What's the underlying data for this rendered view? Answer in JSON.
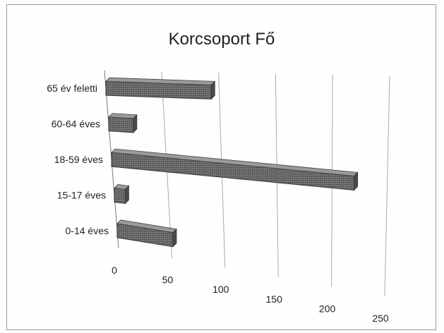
{
  "chart_data": {
    "type": "bar",
    "orientation": "horizontal",
    "title": "Korcsoport  Fő",
    "categories": [
      "65 év feletti",
      "60-64 éves",
      "18-59 éves",
      "15-17 éves",
      "0-14 éves"
    ],
    "values": [
      93,
      22,
      220,
      10,
      52
    ],
    "xlim": [
      0,
      250
    ],
    "x_ticks": [
      "0",
      "50",
      "100",
      "150",
      "200",
      "250"
    ],
    "grid": true,
    "legend": "none",
    "bar_color": "#555555"
  }
}
